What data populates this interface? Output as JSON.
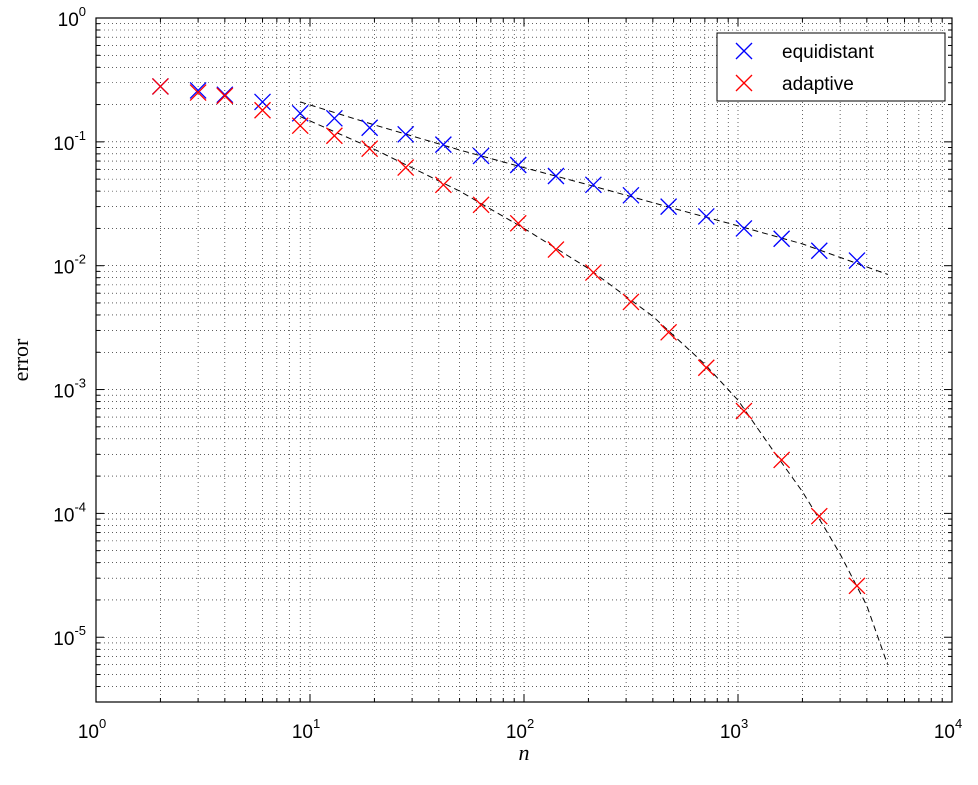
{
  "chart_data": {
    "type": "scatter",
    "xlabel": "n",
    "ylabel": "error",
    "xscale": "log",
    "yscale": "log",
    "xlim": [
      1,
      10000
    ],
    "ylim": [
      3e-06,
      1
    ],
    "grid": true,
    "legend_position": "top-right",
    "x_ticks": [
      {
        "value": 1,
        "base": "10",
        "exp": "0"
      },
      {
        "value": 10,
        "base": "10",
        "exp": "1"
      },
      {
        "value": 100,
        "base": "10",
        "exp": "2"
      },
      {
        "value": 1000,
        "base": "10",
        "exp": "3"
      },
      {
        "value": 10000,
        "base": "10",
        "exp": "4"
      }
    ],
    "y_ticks": [
      {
        "value": 1e-05,
        "base": "10",
        "exp": "-5"
      },
      {
        "value": 0.0001,
        "base": "10",
        "exp": "-4"
      },
      {
        "value": 0.001,
        "base": "10",
        "exp": "-3"
      },
      {
        "value": 0.01,
        "base": "10",
        "exp": "-2"
      },
      {
        "value": 0.1,
        "base": "10",
        "exp": "-1"
      },
      {
        "value": 1,
        "base": "10",
        "exp": "0"
      }
    ],
    "series": [
      {
        "name": "equidistant",
        "color": "#0000ff",
        "marker": "x",
        "x": [
          2,
          3,
          4,
          6,
          9,
          13,
          19,
          28,
          42,
          63,
          94,
          141,
          211,
          316,
          474,
          711,
          1066,
          1599,
          2398,
          3597
        ],
        "y": [
          0.28,
          0.26,
          0.24,
          0.21,
          0.17,
          0.155,
          0.13,
          0.115,
          0.095,
          0.077,
          0.065,
          0.053,
          0.045,
          0.037,
          0.03,
          0.025,
          0.02,
          0.0165,
          0.0132,
          0.011
        ]
      },
      {
        "name": "adaptive",
        "color": "#ff0000",
        "marker": "x",
        "x": [
          2,
          3,
          4,
          6,
          9,
          13,
          19,
          28,
          42,
          63,
          94,
          141,
          211,
          316,
          474,
          711,
          1066,
          1599,
          2398,
          3597
        ],
        "y": [
          0.28,
          0.25,
          0.235,
          0.18,
          0.135,
          0.112,
          0.088,
          0.062,
          0.045,
          0.031,
          0.022,
          0.0135,
          0.0088,
          0.0051,
          0.0029,
          0.0015,
          0.00067,
          0.00027,
          9.5e-05,
          2.6e-05
        ]
      }
    ],
    "fit_lines": [
      {
        "color": "#000000",
        "style": "dashed",
        "x": [
          9,
          20,
          50,
          100,
          200,
          500,
          1000,
          2000,
          5000
        ],
        "y": [
          0.21,
          0.137,
          0.086,
          0.062,
          0.045,
          0.029,
          0.021,
          0.015,
          0.0085
        ]
      },
      {
        "color": "#000000",
        "style": "dashed",
        "x": [
          9,
          20,
          50,
          100,
          200,
          400,
          700,
          1000,
          1500,
          2000,
          2500,
          3000,
          4000,
          5000
        ],
        "y": [
          0.16,
          0.087,
          0.04,
          0.02,
          0.0095,
          0.0039,
          0.0016,
          0.00082,
          0.0003,
          0.00015,
          8e-05,
          4.7e-05,
          1.8e-05,
          6e-06
        ]
      }
    ]
  }
}
